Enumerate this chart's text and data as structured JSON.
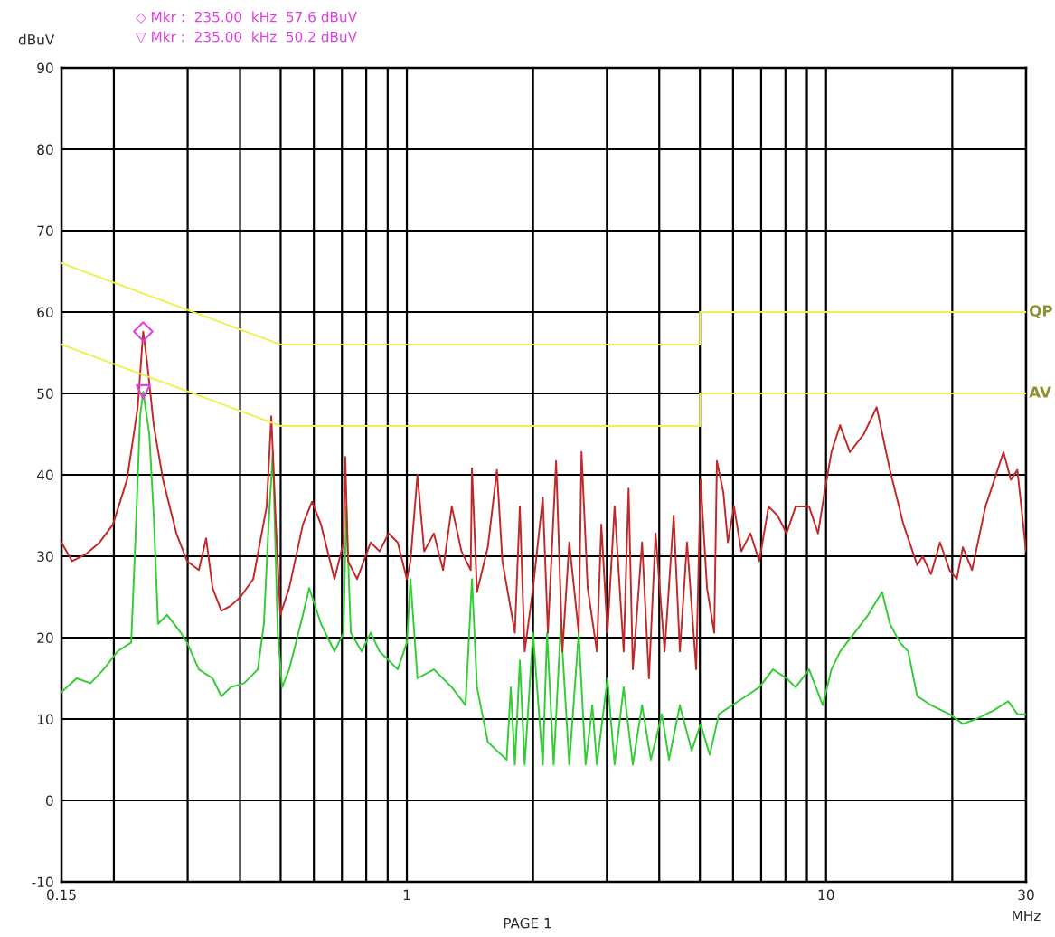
{
  "chart_data": {
    "type": "line",
    "ylabel": "dBuV",
    "xlabel": "MHz",
    "annotations": [
      "◇ Mkr :  235.00  kHz  57.6 dBuV",
      "▽ Mkr :  235.00  kHz  50.2 dBuV",
      "PAGE 1"
    ],
    "log": "x",
    "grid": true,
    "xlim": [
      0.15,
      30
    ],
    "ylim": [
      -10,
      90
    ],
    "xticks": [
      0.15,
      {
        "value": 0.2,
        "label": null
      },
      {
        "value": 0.3,
        "label": null
      },
      {
        "value": 0.4,
        "label": null
      },
      {
        "value": 0.5,
        "label": null
      },
      {
        "value": 0.6,
        "label": null
      },
      {
        "value": 0.7,
        "label": null
      },
      {
        "value": 0.8,
        "label": null
      },
      {
        "value": 0.9,
        "label": null
      },
      1,
      {
        "value": 2,
        "label": null
      },
      {
        "value": 3,
        "label": null
      },
      {
        "value": 4,
        "label": null
      },
      {
        "value": 5,
        "label": null
      },
      {
        "value": 6,
        "label": null
      },
      {
        "value": 7,
        "label": null
      },
      {
        "value": 8,
        "label": null
      },
      {
        "value": 9,
        "label": null
      },
      10,
      {
        "value": 20,
        "label": null
      },
      30
    ],
    "yticks": [
      -10,
      0,
      10,
      20,
      30,
      40,
      50,
      60,
      70,
      80,
      90
    ],
    "series": [
      {
        "name": "QP",
        "color": "#f0f050",
        "x": [
          0.15,
          0.5,
          5,
          5,
          30
        ],
        "values": [
          66,
          56,
          56,
          60,
          60
        ]
      },
      {
        "name": "AV",
        "color": "#f0f050",
        "x": [
          0.15,
          0.5,
          5,
          5,
          30
        ],
        "values": [
          56,
          46,
          46,
          50,
          50
        ]
      },
      {
        "color": "#c0282a",
        "x": [
          0.15,
          0.159,
          0.172,
          0.185,
          0.199,
          0.215,
          0.228,
          0.235,
          0.24,
          0.249,
          0.262,
          0.282,
          0.299,
          0.319,
          0.332,
          0.344,
          0.361,
          0.38,
          0.401,
          0.43,
          0.463,
          0.475,
          0.487,
          0.499,
          0.524,
          0.565,
          0.594,
          0.624,
          0.672,
          0.706,
          0.713,
          0.724,
          0.761,
          0.82,
          0.861,
          0.905,
          0.951,
          1.0,
          1.02,
          1.06,
          1.1,
          1.16,
          1.22,
          1.28,
          1.35,
          1.42,
          1.43,
          1.47,
          1.56,
          1.64,
          1.69,
          1.81,
          1.86,
          1.91,
          2.0,
          2.11,
          2.17,
          2.27,
          2.35,
          2.44,
          2.57,
          2.61,
          2.7,
          2.84,
          2.91,
          3.01,
          3.13,
          3.29,
          3.38,
          3.46,
          3.64,
          3.78,
          3.92,
          4.12,
          4.33,
          4.48,
          4.66,
          4.9,
          5.02,
          5.2,
          5.41,
          5.49,
          5.69,
          5.83,
          6.03,
          6.28,
          6.6,
          6.93,
          7.29,
          7.66,
          8.05,
          8.46,
          9.11,
          9.57,
          9.91,
          10.3,
          10.8,
          11.4,
          12.3,
          13.2,
          14.2,
          15.3,
          16.5,
          17.0,
          17.8,
          18.7,
          19.7,
          20.5,
          21.2,
          22.3,
          24.0,
          26.5,
          27.6,
          28.6,
          30
        ],
        "values": [
          31.7,
          29.4,
          30.3,
          31.7,
          33.9,
          39.4,
          48.3,
          57.6,
          53.9,
          46.1,
          39.4,
          32.8,
          29.4,
          28.3,
          32.2,
          26.1,
          23.3,
          23.9,
          25,
          27.2,
          36.1,
          47.2,
          33.9,
          22.8,
          26.1,
          33.9,
          36.7,
          33.9,
          27.2,
          31.7,
          42.2,
          29.4,
          27.2,
          31.7,
          30.6,
          32.8,
          31.7,
          27.2,
          29.4,
          40,
          30.6,
          32.8,
          28.3,
          36.1,
          30.6,
          28.3,
          40.8,
          25.6,
          31.1,
          40.6,
          29.4,
          20.6,
          36.1,
          18.3,
          26.1,
          37.2,
          20.6,
          41.7,
          18.3,
          31.7,
          20.6,
          42.8,
          26.1,
          18.3,
          33.9,
          20.6,
          36.1,
          18.3,
          38.3,
          16.1,
          31.7,
          15,
          32.8,
          18.3,
          35,
          18.3,
          31.7,
          16.1,
          39.4,
          26.1,
          20.6,
          41.7,
          37.8,
          31.7,
          36.1,
          30.6,
          32.8,
          29.4,
          36.1,
          35,
          32.8,
          36.1,
          36.1,
          32.8,
          37.8,
          42.8,
          46.1,
          42.8,
          45,
          48.3,
          40.6,
          33.9,
          28.9,
          30,
          27.8,
          31.7,
          28.3,
          27.2,
          31.1,
          28.3,
          36.1,
          42.8,
          39.4,
          40.6,
          30.6
        ]
      },
      {
        "color": "#33cc33",
        "x": [
          0.15,
          0.163,
          0.176,
          0.189,
          0.204,
          0.22,
          0.225,
          0.231,
          0.235,
          0.243,
          0.249,
          0.255,
          0.268,
          0.289,
          0.299,
          0.319,
          0.344,
          0.361,
          0.38,
          0.409,
          0.441,
          0.456,
          0.468,
          0.479,
          0.492,
          0.504,
          0.524,
          0.565,
          0.585,
          0.624,
          0.672,
          0.706,
          0.717,
          0.735,
          0.78,
          0.82,
          0.861,
          0.951,
          1.0,
          1.02,
          1.06,
          1.16,
          1.28,
          1.38,
          1.43,
          1.47,
          1.56,
          1.64,
          1.73,
          1.77,
          1.81,
          1.86,
          1.91,
          2.0,
          2.11,
          2.16,
          2.24,
          2.33,
          2.44,
          2.57,
          2.67,
          2.77,
          2.84,
          3.01,
          3.13,
          3.29,
          3.46,
          3.64,
          3.82,
          4.06,
          4.22,
          4.48,
          4.78,
          5.02,
          5.28,
          5.55,
          5.97,
          6.44,
          6.93,
          7.47,
          8.05,
          8.46,
          9.11,
          9.82,
          10.3,
          10.8,
          11.7,
          12.6,
          13.6,
          14.2,
          15.0,
          15.7,
          16.5,
          17.8,
          19.7,
          21.2,
          22.8,
          25.2,
          27.2,
          28.6,
          30
        ],
        "values": [
          13.3,
          15,
          14.4,
          16.1,
          18.3,
          19.4,
          31.7,
          47.2,
          50.2,
          45,
          35,
          21.7,
          22.8,
          20.6,
          19.4,
          16.1,
          15,
          12.8,
          13.9,
          14.4,
          16.1,
          21.7,
          33.9,
          42.8,
          20.6,
          13.9,
          16.1,
          22.8,
          26.1,
          21.7,
          18.3,
          20.6,
          36.1,
          20.6,
          18.3,
          20.6,
          18.3,
          16.1,
          19.4,
          27.2,
          15,
          16.1,
          13.9,
          11.7,
          27.2,
          13.9,
          7.2,
          6.1,
          5,
          13.9,
          4.4,
          17.2,
          4.4,
          20.6,
          4.4,
          20.6,
          4.4,
          21.7,
          4.4,
          20.6,
          4.4,
          11.7,
          4.4,
          15,
          4.4,
          13.9,
          4.4,
          11.7,
          5,
          10.6,
          5,
          11.7,
          6.1,
          9.4,
          5.6,
          10.6,
          11.7,
          12.8,
          13.9,
          16.1,
          15,
          13.9,
          16.1,
          11.7,
          16.1,
          18.3,
          20.6,
          22.8,
          25.6,
          21.7,
          19.4,
          18.3,
          12.8,
          11.7,
          10.6,
          9.4,
          10,
          11.1,
          12.2,
          10.6,
          10.6
        ]
      },
      {
        "type": "scatter",
        "marker": "diamond",
        "color": "#e040e0",
        "x": [
          0.235
        ],
        "values": [
          57.6
        ]
      },
      {
        "type": "scatter",
        "marker": "triangle",
        "color": "#e040e0",
        "x": [
          0.235
        ],
        "values": [
          50.2
        ]
      }
    ]
  }
}
